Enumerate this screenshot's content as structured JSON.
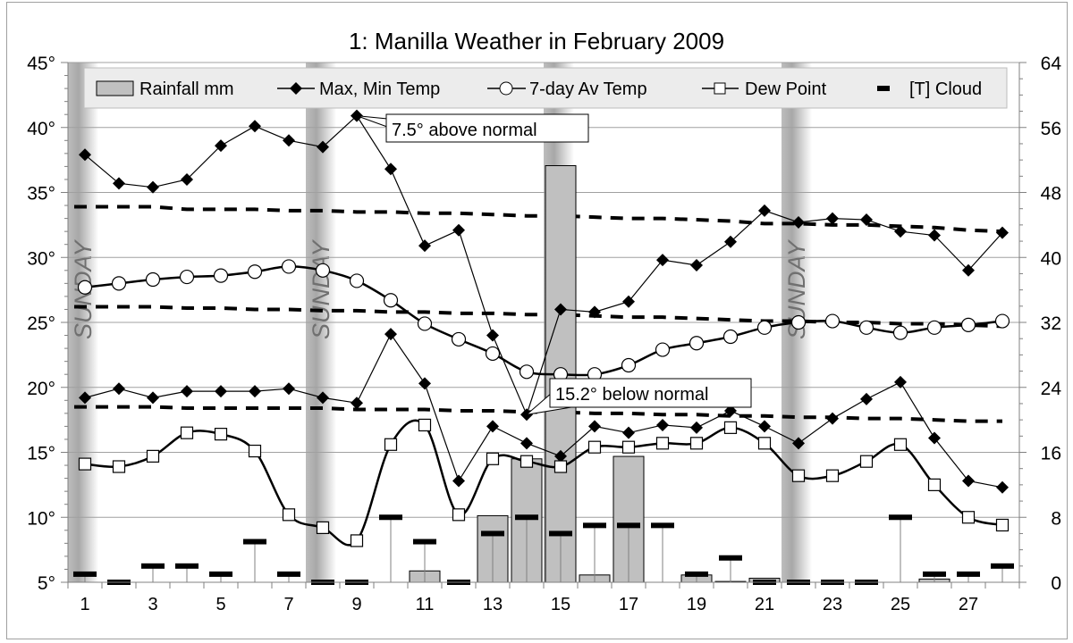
{
  "chart_data": {
    "type": "combo",
    "title": "1: Manilla Weather in February 2009",
    "categories": [
      "1",
      "2",
      "3",
      "4",
      "5",
      "6",
      "7",
      "8",
      "9",
      "10",
      "11",
      "12",
      "13",
      "14",
      "15",
      "16",
      "17",
      "18",
      "19",
      "20",
      "21",
      "22",
      "23",
      "24",
      "25",
      "26",
      "27",
      "28"
    ],
    "x_tick_labels": [
      "1",
      "3",
      "5",
      "7",
      "9",
      "11",
      "13",
      "15",
      "17",
      "19",
      "21",
      "23",
      "25",
      "27"
    ],
    "y_left": {
      "range": [
        5,
        45
      ],
      "major_step": 5,
      "tick_labels": [
        "5°",
        "10°",
        "15°",
        "20°",
        "25°",
        "30°",
        "35°",
        "40°",
        "45°"
      ]
    },
    "y_right": {
      "range": [
        0,
        64
      ],
      "major_step": 8,
      "tick_labels": [
        "0",
        "8",
        "16",
        "24",
        "32",
        "40",
        "48",
        "56",
        "64"
      ]
    },
    "grid": true,
    "legend_position": "top",
    "legend": [
      {
        "label": "Rainfall mm",
        "marker": "bar"
      },
      {
        "label": "Max, Min Temp",
        "marker": "diamond"
      },
      {
        "label": "7-day Av Temp",
        "marker": "circle"
      },
      {
        "label": "Dew Point",
        "marker": "square"
      },
      {
        "label": "[T] Cloud",
        "marker": "dash"
      }
    ],
    "series": [
      {
        "name": "Rainfall mm",
        "type": "bar",
        "axis": "right",
        "values": [
          0,
          0,
          0,
          0,
          0,
          0,
          0,
          0,
          0,
          0,
          1.4,
          0,
          8.2,
          15.2,
          51.3,
          0.9,
          15.5,
          0,
          0.9,
          0.1,
          0.5,
          0,
          0,
          0,
          0,
          0.4,
          0,
          0
        ]
      },
      {
        "name": "Max Temp",
        "type": "line",
        "axis": "left",
        "marker": "diamond",
        "values": [
          37.9,
          35.7,
          35.4,
          36.0,
          38.6,
          40.1,
          39.0,
          38.5,
          40.9,
          36.8,
          30.9,
          32.1,
          24.0,
          17.9,
          26.0,
          25.8,
          26.6,
          29.8,
          29.4,
          31.2,
          33.6,
          32.7,
          33.0,
          32.9,
          32.0,
          31.7,
          29.0,
          31.9
        ]
      },
      {
        "name": "Min Temp",
        "type": "line",
        "axis": "left",
        "marker": "diamond",
        "values": [
          19.2,
          19.9,
          19.2,
          19.7,
          19.7,
          19.7,
          19.9,
          19.2,
          18.8,
          24.1,
          20.3,
          12.8,
          17.0,
          15.7,
          14.7,
          17.0,
          16.5,
          17.1,
          16.9,
          18.2,
          17.0,
          15.7,
          17.6,
          19.1,
          20.4,
          16.1,
          12.8,
          12.3
        ]
      },
      {
        "name": "7-day Av Temp",
        "type": "smooth-line",
        "axis": "left",
        "marker": "circle",
        "values": [
          27.7,
          28.0,
          28.3,
          28.5,
          28.6,
          28.9,
          29.3,
          29.0,
          28.2,
          26.7,
          24.9,
          23.7,
          22.6,
          21.2,
          21.0,
          21.0,
          21.7,
          22.9,
          23.4,
          23.9,
          24.6,
          25.0,
          25.1,
          24.6,
          24.2,
          24.6,
          24.8,
          25.1
        ]
      },
      {
        "name": "Dew Point",
        "type": "smooth-line",
        "axis": "left",
        "marker": "square",
        "values": [
          14.1,
          13.9,
          14.7,
          16.5,
          16.4,
          15.1,
          10.2,
          9.2,
          8.2,
          15.6,
          17.1,
          10.2,
          14.5,
          14.3,
          13.9,
          15.4,
          15.4,
          15.7,
          15.7,
          16.9,
          15.7,
          13.2,
          13.2,
          14.3,
          15.6,
          12.5,
          10.0,
          9.4
        ]
      },
      {
        "name": "[T] Cloud",
        "type": "dash-marker",
        "axis": "right",
        "values": [
          1,
          0,
          2,
          2,
          1,
          5,
          1,
          0,
          0,
          8,
          5,
          0,
          6,
          8,
          6,
          7,
          7,
          7,
          1,
          3,
          0,
          0,
          0,
          0,
          8,
          1,
          1,
          2
        ]
      },
      {
        "type": "dashed-line",
        "axis": "left",
        "values": [
          33.9,
          33.9,
          33.9,
          33.7,
          33.7,
          33.7,
          33.6,
          33.6,
          33.5,
          33.5,
          33.4,
          33.4,
          33.3,
          33.2,
          33.2,
          33.1,
          33.0,
          33.0,
          32.9,
          32.8,
          32.6,
          32.6,
          32.5,
          32.5,
          32.4,
          32.3,
          32.1,
          32.0
        ]
      },
      {
        "type": "dashed-line",
        "axis": "left",
        "values": [
          26.2,
          26.2,
          26.2,
          26.1,
          26.1,
          26.0,
          26.0,
          25.9,
          25.9,
          25.8,
          25.8,
          25.7,
          25.7,
          25.6,
          25.6,
          25.5,
          25.4,
          25.4,
          25.3,
          25.2,
          25.1,
          25.1,
          25.0,
          25.0,
          24.9,
          24.9,
          24.8,
          24.7
        ]
      },
      {
        "type": "dashed-line",
        "axis": "left",
        "values": [
          18.5,
          18.5,
          18.5,
          18.4,
          18.4,
          18.4,
          18.4,
          18.4,
          18.3,
          18.3,
          18.3,
          18.2,
          18.2,
          18.1,
          18.1,
          18.0,
          18.0,
          17.9,
          17.9,
          17.8,
          17.8,
          17.7,
          17.7,
          17.6,
          17.6,
          17.5,
          17.4,
          17.4
        ]
      }
    ],
    "sunday_days": [
      1,
      8,
      15,
      22
    ],
    "sunday_label": "SUNDAY",
    "annotations": [
      {
        "text": "7.5° above normal",
        "day": 9,
        "series": "Max Temp"
      },
      {
        "text": "15.2° below normal",
        "day": 14,
        "series": "Max Temp"
      }
    ]
  }
}
